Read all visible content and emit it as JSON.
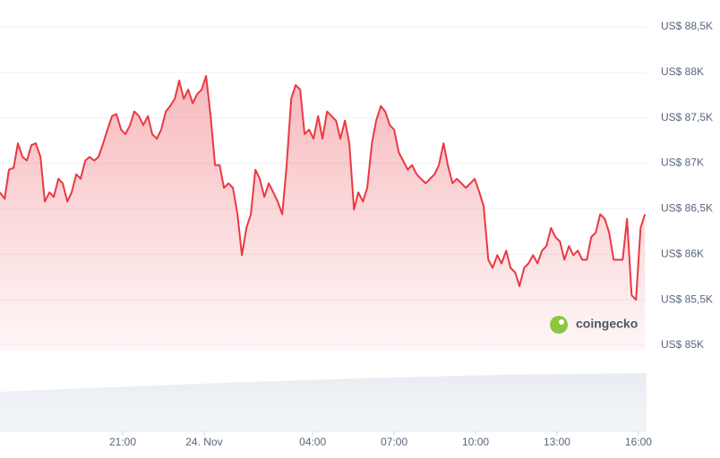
{
  "chart_data": {
    "type": "line",
    "watermark": "coingecko",
    "x": [
      -7.52,
      -7.35,
      -7.19,
      -7.02,
      -6.86,
      -6.69,
      -6.53,
      -6.36,
      -6.2,
      -6.03,
      -5.87,
      -5.7,
      -5.54,
      -5.37,
      -5.21,
      -5.04,
      -4.88,
      -4.71,
      -4.55,
      -4.38,
      -4.22,
      -4.05,
      -3.89,
      -3.72,
      -3.56,
      -3.39,
      -3.23,
      -3.06,
      -2.9,
      -2.73,
      -2.57,
      -2.4,
      -2.24,
      -2.07,
      -1.91,
      -1.74,
      -1.58,
      -1.41,
      -1.25,
      -1.08,
      -0.92,
      -0.75,
      -0.59,
      -0.42,
      -0.26,
      -0.09,
      0.07,
      0.24,
      0.4,
      0.57,
      0.73,
      0.9,
      1.06,
      1.23,
      1.39,
      1.56,
      1.72,
      1.89,
      2.05,
      2.22,
      2.38,
      2.55,
      2.71,
      2.88,
      3.04,
      3.21,
      3.37,
      3.54,
      3.7,
      3.87,
      4.03,
      4.2,
      4.36,
      4.53,
      4.69,
      4.86,
      5.02,
      5.19,
      5.35,
      5.52,
      5.68,
      5.85,
      6.01,
      6.18,
      6.34,
      6.51,
      6.67,
      6.84,
      7.0,
      7.17,
      7.33,
      7.5,
      7.66,
      7.83,
      7.99,
      8.16,
      8.32,
      8.49,
      8.65,
      8.82,
      8.98,
      9.15,
      9.31,
      9.48,
      9.64,
      9.81,
      9.97,
      10.14,
      10.3,
      10.47,
      10.63,
      10.8,
      10.96,
      11.13,
      11.29,
      11.46,
      11.62,
      11.79,
      11.95,
      12.12,
      12.28,
      12.45,
      12.61,
      12.78,
      12.94,
      13.11,
      13.27,
      13.44,
      13.6,
      13.77,
      13.93,
      14.1,
      14.26,
      14.43,
      14.59,
      14.76,
      14.92,
      15.09,
      15.25,
      15.42,
      15.58,
      15.75,
      15.91,
      16.08,
      16.24
    ],
    "series": [
      {
        "color": "#ea3943",
        "values": [
          86680,
          86610,
          86930,
          86950,
          87220,
          87070,
          87030,
          87200,
          87220,
          87070,
          86580,
          86680,
          86630,
          86830,
          86780,
          86580,
          86680,
          86880,
          86830,
          87030,
          87070,
          87030,
          87070,
          87220,
          87370,
          87520,
          87540,
          87370,
          87320,
          87420,
          87570,
          87520,
          87420,
          87520,
          87320,
          87270,
          87370,
          87570,
          87630,
          87710,
          87910,
          87710,
          87810,
          87660,
          87760,
          87810,
          87960,
          87520,
          86980,
          86980,
          86730,
          86780,
          86730,
          86440,
          85990,
          86290,
          86440,
          86930,
          86830,
          86630,
          86780,
          86680,
          86580,
          86440,
          86980,
          87710,
          87860,
          87810,
          87320,
          87370,
          87270,
          87520,
          87270,
          87570,
          87520,
          87470,
          87270,
          87470,
          87220,
          86490,
          86680,
          86580,
          86730,
          87220,
          87470,
          87630,
          87570,
          87420,
          87370,
          87120,
          87030,
          86930,
          86980,
          86880,
          86830,
          86780,
          86830,
          86880,
          86980,
          87220,
          86980,
          86780,
          86830,
          86780,
          86730,
          86780,
          86830,
          86680,
          86530,
          85940,
          85850,
          85990,
          85900,
          86040,
          85850,
          85800,
          85650,
          85850,
          85900,
          85990,
          85900,
          86040,
          86090,
          86290,
          86190,
          86140,
          85940,
          86090,
          85990,
          86040,
          85940,
          85940,
          86190,
          86240,
          86440,
          86390,
          86240,
          85940,
          85940,
          85940,
          86390,
          85550,
          85500,
          86290,
          86440
        ]
      }
    ],
    "xlim": [
      -7.52,
      16.3
    ],
    "xticks": [
      {
        "value": -3,
        "label": "21:00"
      },
      {
        "value": 0,
        "label": "24. Nov"
      },
      {
        "value": 4,
        "label": "04:00"
      },
      {
        "value": 7,
        "label": "07:00"
      },
      {
        "value": 10,
        "label": "10:00"
      },
      {
        "value": 13,
        "label": "13:00"
      },
      {
        "value": 16,
        "label": "16:00"
      }
    ],
    "ylim": [
      85000,
      88500
    ],
    "yticks": [
      {
        "value": 85000,
        "label": "US$ 85K"
      },
      {
        "value": 85500,
        "label": "US$ 85,5K"
      },
      {
        "value": 86000,
        "label": "US$ 86K"
      },
      {
        "value": 86500,
        "label": "US$ 86,5K"
      },
      {
        "value": 87000,
        "label": "US$ 87K"
      },
      {
        "value": 87500,
        "label": "US$ 87,5K"
      },
      {
        "value": 88000,
        "label": "US$ 88K"
      },
      {
        "value": 88500,
        "label": "US$ 88,5K"
      }
    ],
    "grid": true
  }
}
